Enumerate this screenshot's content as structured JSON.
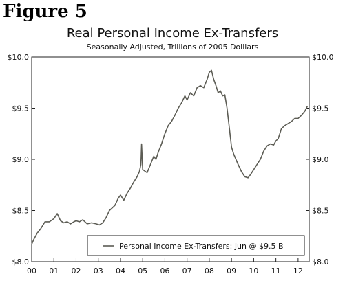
{
  "figure_label": "Figure 5",
  "chart_data": {
    "type": "line",
    "title": "Real Personal Income Ex-Transfers",
    "subtitle": "Seasonally Adjusted, Trillions of 2005 Dolllars",
    "xlabel": "",
    "ylabel": "",
    "xlim": [
      2000.0,
      2012.5
    ],
    "ylim": [
      8.0,
      10.0
    ],
    "x_ticks": [
      {
        "value": 2000,
        "label": "00"
      },
      {
        "value": 2001,
        "label": "01"
      },
      {
        "value": 2002,
        "label": "02"
      },
      {
        "value": 2003,
        "label": "03"
      },
      {
        "value": 2004,
        "label": "04"
      },
      {
        "value": 2005,
        "label": "05"
      },
      {
        "value": 2006,
        "label": "06"
      },
      {
        "value": 2007,
        "label": "07"
      },
      {
        "value": 2008,
        "label": "08"
      },
      {
        "value": 2009,
        "label": "09"
      },
      {
        "value": 2010,
        "label": "10"
      },
      {
        "value": 2011,
        "label": "11"
      },
      {
        "value": 2012,
        "label": "12"
      }
    ],
    "y_ticks": [
      {
        "value": 8.0,
        "label": "$8.0"
      },
      {
        "value": 8.5,
        "label": "$8.5"
      },
      {
        "value": 9.0,
        "label": "$9.0"
      },
      {
        "value": 9.5,
        "label": "$9.5"
      },
      {
        "value": 10.0,
        "label": "$10.0"
      }
    ],
    "grid": false,
    "legend_position": "bottom-right",
    "line_color": "#5c5c54",
    "series": [
      {
        "name": "Personal Income Ex-Transfers: Jun @ $9.5 B",
        "x": [
          2000.0,
          2000.1,
          2000.25,
          2000.4,
          2000.6,
          2000.8,
          2001.0,
          2001.15,
          2001.3,
          2001.45,
          2001.6,
          2001.75,
          2001.9,
          2002.0,
          2002.15,
          2002.3,
          2002.5,
          2002.7,
          2002.9,
          2003.05,
          2003.2,
          2003.35,
          2003.5,
          2003.6,
          2003.75,
          2003.9,
          2004.0,
          2004.15,
          2004.3,
          2004.45,
          2004.6,
          2004.75,
          2004.85,
          2004.92,
          2004.95,
          2005.0,
          2005.2,
          2005.35,
          2005.5,
          2005.6,
          2005.7,
          2005.85,
          2006.0,
          2006.15,
          2006.3,
          2006.45,
          2006.6,
          2006.75,
          2006.9,
          2007.0,
          2007.15,
          2007.3,
          2007.45,
          2007.6,
          2007.75,
          2007.9,
          2008.0,
          2008.1,
          2008.2,
          2008.3,
          2008.4,
          2008.5,
          2008.6,
          2008.7,
          2008.8,
          2008.88,
          2009.0,
          2009.1,
          2009.2,
          2009.3,
          2009.45,
          2009.6,
          2009.75,
          2009.85,
          2010.0,
          2010.15,
          2010.3,
          2010.45,
          2010.6,
          2010.75,
          2010.9,
          2011.0,
          2011.1,
          2011.25,
          2011.4,
          2011.55,
          2011.7,
          2011.85,
          2012.0,
          2012.15,
          2012.3,
          2012.42
        ],
        "y": [
          8.17,
          8.22,
          8.28,
          8.32,
          8.39,
          8.39,
          8.42,
          8.47,
          8.4,
          8.38,
          8.39,
          8.37,
          8.39,
          8.4,
          8.39,
          8.41,
          8.37,
          8.38,
          8.37,
          8.36,
          8.38,
          8.43,
          8.5,
          8.52,
          8.55,
          8.62,
          8.65,
          8.6,
          8.67,
          8.72,
          8.78,
          8.83,
          8.88,
          8.95,
          9.15,
          8.9,
          8.87,
          8.95,
          9.03,
          9.0,
          9.07,
          9.15,
          9.25,
          9.33,
          9.37,
          9.43,
          9.5,
          9.55,
          9.62,
          9.58,
          9.65,
          9.62,
          9.7,
          9.72,
          9.7,
          9.78,
          9.85,
          9.87,
          9.78,
          9.72,
          9.65,
          9.67,
          9.62,
          9.63,
          9.5,
          9.35,
          9.12,
          9.05,
          9.0,
          8.95,
          8.88,
          8.83,
          8.82,
          8.85,
          8.9,
          8.95,
          9.0,
          9.08,
          9.13,
          9.15,
          9.14,
          9.18,
          9.2,
          9.3,
          9.33,
          9.35,
          9.37,
          9.4,
          9.4,
          9.43,
          9.47,
          9.52
        ]
      }
    ]
  }
}
